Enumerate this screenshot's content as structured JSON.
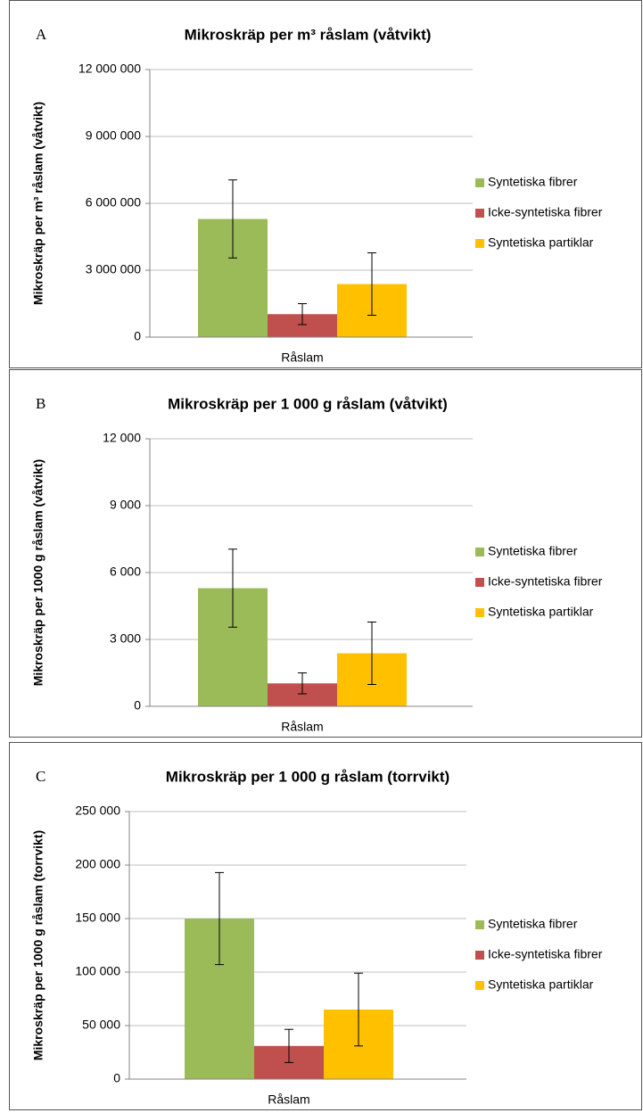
{
  "chart_data": [
    {
      "type": "bar",
      "label": "A",
      "title": "Mikroskräp per m³ råslam (våtvikt)",
      "y_label": "Mikroskräp per m³ råslam (våtvikt)",
      "categories": [
        "Råslam"
      ],
      "series": [
        {
          "name": "Syntetiska fibrer",
          "color": "#9bbb59",
          "values": [
            5300000
          ],
          "errors": [
            1750000
          ]
        },
        {
          "name": "Icke-syntetiska fibrer",
          "color": "#c0504d",
          "values": [
            1030000
          ],
          "errors": [
            470000
          ]
        },
        {
          "name": "Syntetiska partiklar",
          "color": "#ffc000",
          "values": [
            2380000
          ],
          "errors": [
            1400000
          ]
        }
      ],
      "ylim": [
        0,
        12000000
      ],
      "yticks": [
        0,
        {
          "value": 3000000,
          "label": "3 000 000"
        },
        {
          "value": 6000000,
          "label": "6 000 000"
        },
        {
          "value": 9000000,
          "label": "9 000 000"
        },
        {
          "value": 12000000,
          "label": "12 000 000"
        }
      ],
      "grid": true,
      "legend": "right"
    },
    {
      "type": "bar",
      "label": "B",
      "title": "Mikroskräp per 1 000 g råslam (våtvikt)",
      "y_label": "Mikroskräp per 1000 g  råslam (våtvikt)",
      "categories": [
        "Råslam"
      ],
      "series": [
        {
          "name": "Syntetiska fibrer",
          "color": "#9bbb59",
          "values": [
            5300
          ],
          "errors": [
            1750
          ]
        },
        {
          "name": "Icke-syntetiska fibrer",
          "color": "#c0504d",
          "values": [
            1030
          ],
          "errors": [
            470
          ]
        },
        {
          "name": "Syntetiska partiklar",
          "color": "#ffc000",
          "values": [
            2380
          ],
          "errors": [
            1400
          ]
        }
      ],
      "ylim": [
        0,
        12000
      ],
      "yticks": [
        0,
        {
          "value": 3000,
          "label": "3 000"
        },
        {
          "value": 6000,
          "label": "6 000"
        },
        {
          "value": 9000,
          "label": "9 000"
        },
        {
          "value": 12000,
          "label": "12 000"
        }
      ],
      "grid": true,
      "legend": "right"
    },
    {
      "type": "bar",
      "label": "C",
      "title": "Mikroskräp per 1 000 g råslam (torrvikt)",
      "y_label": "Mikroskräp per 1000 g  råslam (torrvikt)",
      "categories": [
        "Råslam"
      ],
      "series": [
        {
          "name": "Syntetiska fibrer",
          "color": "#9bbb59",
          "values": [
            150000
          ],
          "errors": [
            43000
          ]
        },
        {
          "name": "Icke-syntetiska fibrer",
          "color": "#c0504d",
          "values": [
            31000
          ],
          "errors": [
            15500
          ]
        },
        {
          "name": "Syntetiska partiklar",
          "color": "#ffc000",
          "values": [
            65000
          ],
          "errors": [
            34000
          ]
        }
      ],
      "ylim": [
        0,
        250000
      ],
      "yticks": [
        0,
        {
          "value": 50000,
          "label": "50 000"
        },
        {
          "value": 100000,
          "label": "100 000"
        },
        {
          "value": 150000,
          "label": "150 000"
        },
        {
          "value": 200000,
          "label": "200 000"
        },
        {
          "value": 250000,
          "label": "250 000"
        }
      ],
      "grid": true,
      "legend": "right"
    }
  ]
}
